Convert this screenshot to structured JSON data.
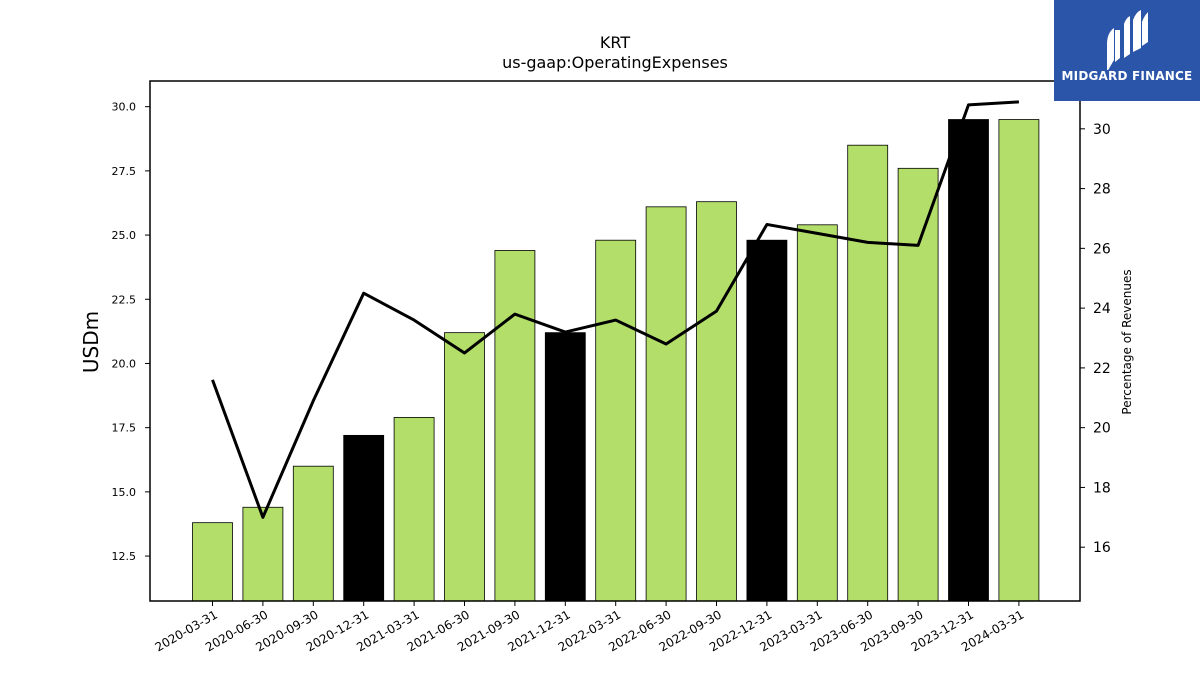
{
  "brand": {
    "name": "MIDGARD FINANCE",
    "color": "#2b55a8"
  },
  "chart_data": {
    "type": "bar",
    "title": "KRT",
    "subtitle": "us-gaap:OperatingExpenses",
    "ylabel": "USDm",
    "y2label": "Percentage of Revenues",
    "categories": [
      "2020-03-31",
      "2020-06-30",
      "2020-09-30",
      "2020-12-31",
      "2021-03-31",
      "2021-06-30",
      "2021-09-30",
      "2021-12-31",
      "2022-03-31",
      "2022-06-30",
      "2022-09-30",
      "2022-12-31",
      "2023-03-31",
      "2023-06-30",
      "2023-09-30",
      "2023-12-31",
      "2024-03-31"
    ],
    "series": [
      {
        "type": "bar",
        "axis": "left",
        "values": [
          13.8,
          14.4,
          16.0,
          17.2,
          17.9,
          21.2,
          24.4,
          21.2,
          24.8,
          26.1,
          26.3,
          24.8,
          25.4,
          28.5,
          27.6,
          29.5,
          29.5
        ],
        "colors": [
          "#b3de69",
          "#b3de69",
          "#b3de69",
          "#000000",
          "#b3de69",
          "#b3de69",
          "#b3de69",
          "#000000",
          "#b3de69",
          "#b3de69",
          "#b3de69",
          "#000000",
          "#b3de69",
          "#b3de69",
          "#b3de69",
          "#000000",
          "#b3de69"
        ]
      },
      {
        "type": "line",
        "axis": "right",
        "color": "#000000",
        "values": [
          21.6,
          17.0,
          20.9,
          24.5,
          23.6,
          22.5,
          23.8,
          23.2,
          23.6,
          22.8,
          23.9,
          26.8,
          26.5,
          26.2,
          26.1,
          30.8,
          30.9
        ]
      }
    ],
    "ylim": [
      10.75,
      31.0
    ],
    "y2lim": [
      14.2,
      31.6
    ],
    "yticks": [
      "12.5",
      "15.0",
      "17.5",
      "20.0",
      "22.5",
      "25.0",
      "27.5",
      "30.0"
    ],
    "y2ticks": [
      "16",
      "18",
      "20",
      "22",
      "24",
      "26",
      "28",
      "30"
    ],
    "grid": false
  }
}
